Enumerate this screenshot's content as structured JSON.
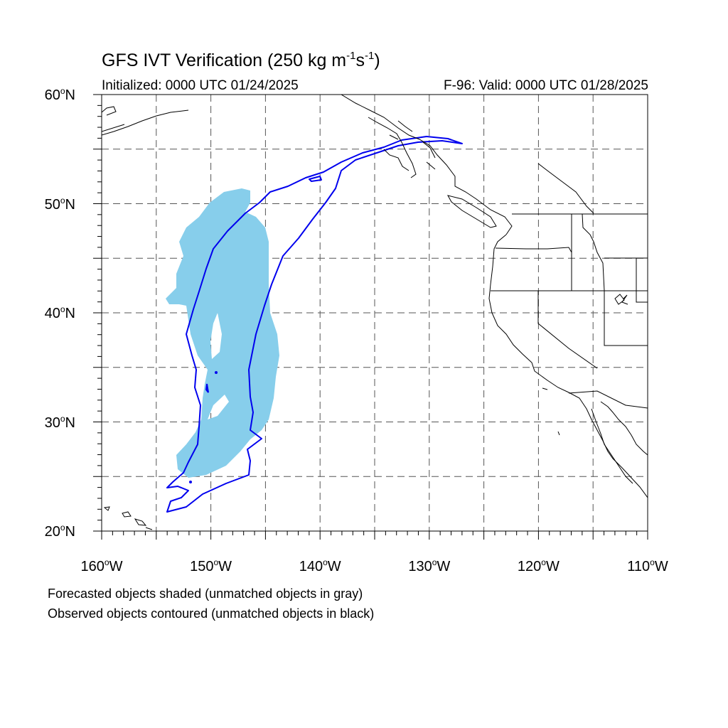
{
  "title": {
    "main": "GFS IVT Verification (250 kg m",
    "exp1": "-1",
    "mid": "s",
    "exp2": "-1",
    "close": ")"
  },
  "subtitle_left": "Initialized: 0000 UTC 01/24/2025",
  "subtitle_right": "F-96: Valid: 0000 UTC 01/28/2025",
  "map": {
    "projection": "cylindrical-equidistant",
    "lon_range": [
      -160,
      -110
    ],
    "lat_range": [
      20,
      60
    ],
    "gridlines": "dashed",
    "lat_labels": [
      {
        "lat": 60,
        "num": "60",
        "hemi": "N"
      },
      {
        "lat": 50,
        "num": "50",
        "hemi": "N"
      },
      {
        "lat": 40,
        "num": "40",
        "hemi": "N"
      },
      {
        "lat": 30,
        "num": "30",
        "hemi": "N"
      },
      {
        "lat": 20,
        "num": "20",
        "hemi": "N"
      }
    ],
    "lon_labels": [
      {
        "lon": -160,
        "num": "160",
        "hemi": "W"
      },
      {
        "lon": -150,
        "num": "150",
        "hemi": "W"
      },
      {
        "lon": -140,
        "num": "140",
        "hemi": "W"
      },
      {
        "lon": -130,
        "num": "130",
        "hemi": "W"
      },
      {
        "lon": -120,
        "num": "120",
        "hemi": "W"
      },
      {
        "lon": -110,
        "num": "110",
        "hemi": "W"
      }
    ],
    "forecast_object_color": "#87ceeb",
    "observed_contour_color": "#0000ee",
    "land_outline_color": "#000000"
  },
  "legend": {
    "line1": "Forecasted objects shaded (unmatched objects in gray)",
    "line2": "Observed objects contoured (unmatched objects in black)"
  }
}
